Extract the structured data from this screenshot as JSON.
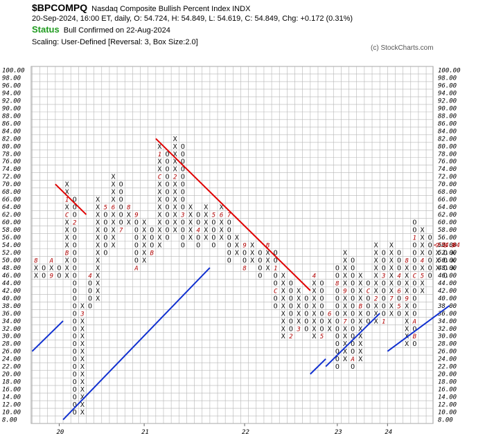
{
  "header": {
    "symbol": "$BPCOMPQ",
    "description": "Nasdaq Composite Bullish Percent Index  INDX",
    "stats": "20-Sep-2024, 16:00 ET, daily, O: 54.724, H: 54.849, L: 54.619, C: 54.849, Chg: +0.172 (0.31%)",
    "status_label": "Status",
    "status_text": "Bull Confirmed on 22-Aug-2024",
    "scaling": "Scaling: User-Defined [Reversal: 3, Box Size:2.0]",
    "copyright": "(c) StockCharts.com"
  },
  "chart_data": {
    "type": "point-and-figure",
    "box_size": 2.0,
    "reversal": 3,
    "ylim": [
      8,
      100
    ],
    "y_tick_labels": [
      "100.00",
      "98.00",
      "96.00",
      "94.00",
      "92.00",
      "90.00",
      "88.00",
      "86.00",
      "84.00",
      "82.00",
      "80.00",
      "78.00",
      "76.00",
      "74.00",
      "72.00",
      "70.00",
      "68.00",
      "66.00",
      "64.00",
      "62.00",
      "60.00",
      "58.00",
      "56.00",
      "54.00",
      "52.00",
      "50.00",
      "48.00",
      "46.00",
      "44.00",
      "42.00",
      "40.00",
      "38.00",
      "36.00",
      "34.00",
      "32.00",
      "30.00",
      "28.00",
      "26.00",
      "24.00",
      "22.00",
      "20.00",
      "18.00",
      "16.00",
      "14.00",
      "12.00",
      "10.00",
      "8.00"
    ],
    "x_tick_labels": [
      "20",
      "21",
      "22",
      "23",
      "24"
    ],
    "last_price_label": "54.84",
    "columns": [
      {
        "type": "X",
        "low": 46,
        "high": 50,
        "marks": {
          "50": "8"
        }
      },
      {
        "type": "O",
        "low": 46,
        "high": 48
      },
      {
        "type": "X",
        "low": 46,
        "high": 50,
        "marks": {
          "46": "9",
          "50": "A"
        }
      },
      {
        "type": "O",
        "low": 46,
        "high": 48
      },
      {
        "type": "X",
        "low": 46,
        "high": 70,
        "marks": {
          "52": "B",
          "62": "C",
          "66": "1"
        }
      },
      {
        "type": "O",
        "low": 10,
        "high": 66,
        "marks": {
          "60": "2"
        }
      },
      {
        "type": "X",
        "low": 10,
        "high": 38,
        "marks": {
          "36": "3"
        }
      },
      {
        "type": "O",
        "low": 38,
        "high": 46,
        "marks": {
          "46": "4"
        }
      },
      {
        "type": "X",
        "low": 40,
        "high": 66
      },
      {
        "type": "O",
        "low": 52,
        "high": 64,
        "marks": {
          "64": "5"
        }
      },
      {
        "type": "X",
        "low": 54,
        "high": 72,
        "marks": {
          "64": "6"
        }
      },
      {
        "type": "O",
        "low": 58,
        "high": 70,
        "marks": {
          "58": "7"
        }
      },
      {
        "type": "X",
        "low": 60,
        "high": 64,
        "marks": {
          "64": "8"
        }
      },
      {
        "type": "O",
        "low": 48,
        "high": 62,
        "marks": {
          "48": "A",
          "62": "9"
        }
      },
      {
        "type": "X",
        "low": 50,
        "high": 60
      },
      {
        "type": "O",
        "low": 52,
        "high": 58,
        "marks": {
          "52": "B"
        }
      },
      {
        "type": "X",
        "low": 54,
        "high": 80,
        "marks": {
          "72": "C",
          "78": "1"
        }
      },
      {
        "type": "O",
        "low": 56,
        "high": 78
      },
      {
        "type": "X",
        "low": 58,
        "high": 82,
        "marks": {
          "72": "2"
        }
      },
      {
        "type": "O",
        "low": 54,
        "high": 80,
        "marks": {
          "62": "3"
        }
      },
      {
        "type": "X",
        "low": 56,
        "high": 64
      },
      {
        "type": "O",
        "low": 54,
        "high": 62,
        "marks": {
          "58": "4"
        }
      },
      {
        "type": "X",
        "low": 56,
        "high": 64
      },
      {
        "type": "O",
        "low": 54,
        "high": 62,
        "marks": {
          "62": "5"
        }
      },
      {
        "type": "X",
        "low": 56,
        "high": 64,
        "marks": {
          "62": "6"
        }
      },
      {
        "type": "O",
        "low": 50,
        "high": 62,
        "marks": {
          "62": "7"
        }
      },
      {
        "type": "X",
        "low": 52,
        "high": 56
      },
      {
        "type": "O",
        "low": 48,
        "high": 54,
        "marks": {
          "48": "8",
          "54": "9"
        }
      },
      {
        "type": "X",
        "low": 50,
        "high": 54
      },
      {
        "type": "O",
        "low": 46,
        "high": 52
      },
      {
        "type": "X",
        "low": 48,
        "high": 54,
        "marks": {
          "54": "B"
        }
      },
      {
        "type": "O",
        "low": 38,
        "high": 52,
        "marks": {
          "42": "C",
          "48": "1"
        }
      },
      {
        "type": "X",
        "low": 30,
        "high": 46
      },
      {
        "type": "O",
        "low": 30,
        "high": 44,
        "marks": {
          "30": "2"
        }
      },
      {
        "type": "X",
        "low": 32,
        "high": 42,
        "marks": {
          "32": "3"
        }
      },
      {
        "type": "O",
        "low": 32,
        "high": 40
      },
      {
        "type": "X",
        "low": 30,
        "high": 46,
        "marks": {
          "46": "4"
        }
      },
      {
        "type": "O",
        "low": 30,
        "high": 44,
        "marks": {
          "30": "5"
        }
      },
      {
        "type": "X",
        "low": 32,
        "high": 36,
        "marks": {
          "36": "6"
        }
      },
      {
        "type": "O",
        "low": 22,
        "high": 48,
        "marks": {
          "44": "8"
        }
      },
      {
        "type": "X",
        "low": 24,
        "high": 52,
        "marks": {
          "34": "7",
          "42": "9"
        }
      },
      {
        "type": "O",
        "low": 22,
        "high": 50,
        "marks": {
          "24": "A"
        }
      },
      {
        "type": "X",
        "low": 24,
        "high": 46,
        "marks": {
          "38": "B"
        }
      },
      {
        "type": "O",
        "low": 34,
        "high": 44,
        "marks": {
          "42": "C"
        }
      },
      {
        "type": "X",
        "low": 34,
        "high": 54,
        "marks": {
          "40": "2"
        }
      },
      {
        "type": "O",
        "low": 34,
        "high": 52,
        "marks": {
          "34": "1",
          "46": "3"
        }
      },
      {
        "type": "X",
        "low": 36,
        "high": 54,
        "marks": {
          "40": "7"
        }
      },
      {
        "type": "O",
        "low": 36,
        "high": 52,
        "marks": {
          "38": "5",
          "46": "4",
          "42": "6"
        }
      },
      {
        "type": "X",
        "low": 28,
        "high": 50,
        "marks": {
          "40": "9",
          "50": "8"
        }
      },
      {
        "type": "O",
        "low": 28,
        "high": 60,
        "marks": {
          "30": "B",
          "46": "C",
          "34": "A",
          "56": "1"
        }
      },
      {
        "type": "X",
        "low": 42,
        "high": 58,
        "marks": {
          "46": "5",
          "50": "4"
        }
      },
      {
        "type": "O",
        "low": 46,
        "high": 56
      },
      {
        "type": "X",
        "low": 48,
        "high": 54,
        "marks": {
          "54": "7"
        }
      },
      {
        "type": "O",
        "low": 46,
        "high": 54,
        "marks": {
          "54": "8"
        }
      },
      {
        "type": "X",
        "low": 48,
        "high": 54,
        "marks": {
          "54": "9"
        }
      }
    ],
    "trendlines": [
      {
        "color": "#1030d0",
        "from": [
          -0.5,
          26
        ],
        "to": [
          3.5,
          34
        ]
      },
      {
        "color": "#e00000",
        "from": [
          2.5,
          70
        ],
        "to": [
          6.5,
          62
        ]
      },
      {
        "color": "#1030d0",
        "from": [
          3.5,
          8
        ],
        "to": [
          22.5,
          48
        ]
      },
      {
        "color": "#e00000",
        "from": [
          15.5,
          82
        ],
        "to": [
          35.5,
          42
        ]
      },
      {
        "color": "#1030d0",
        "from": [
          35.5,
          20
        ],
        "to": [
          37.5,
          24
        ]
      },
      {
        "color": "#1030d0",
        "from": [
          37.5,
          22
        ],
        "to": [
          44.5,
          36
        ]
      },
      {
        "color": "#1030d0",
        "from": [
          45.5,
          26
        ],
        "to": [
          53.5,
          38
        ]
      }
    ]
  }
}
